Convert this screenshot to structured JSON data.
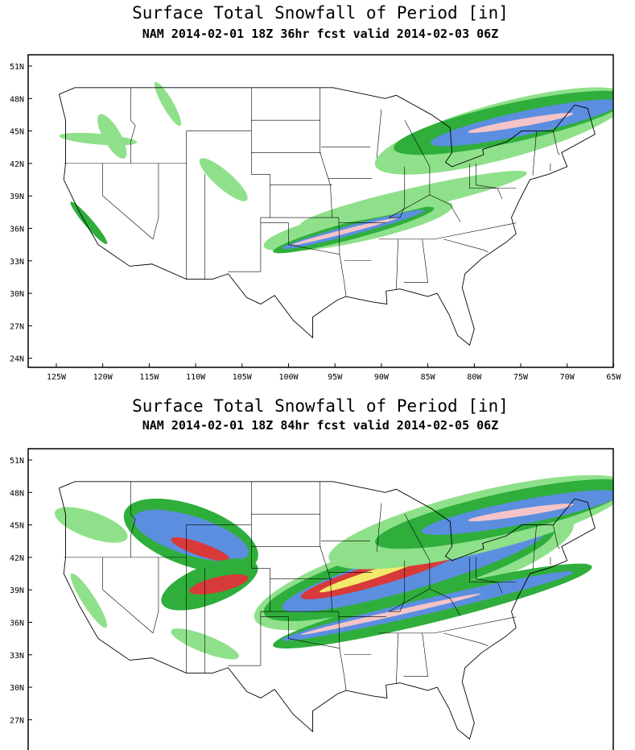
{
  "panels": [
    {
      "title": "Surface Total Snowfall of Period [in]",
      "subtitle": "NAM 2014-02-01 18Z 36hr fcst valid 2014-02-03 06Z",
      "lat_labels": [
        "51N",
        "48N",
        "45N",
        "42N",
        "39N",
        "36N",
        "33N",
        "30N",
        "27N",
        "24N"
      ],
      "lon_labels": [
        "125W",
        "120W",
        "115W",
        "110W",
        "105W",
        "100W",
        "95W",
        "90W",
        "85W",
        "80W",
        "75W",
        "70W",
        "65W"
      ]
    },
    {
      "title": "Surface Total Snowfall of Period [in]",
      "subtitle": "NAM 2014-02-01 18Z 84hr fcst valid 2014-02-05 06Z",
      "lat_labels": [
        "51N",
        "48N",
        "45N",
        "42N",
        "39N",
        "36N",
        "33N",
        "30N",
        "27N"
      ],
      "lon_labels": []
    }
  ]
}
